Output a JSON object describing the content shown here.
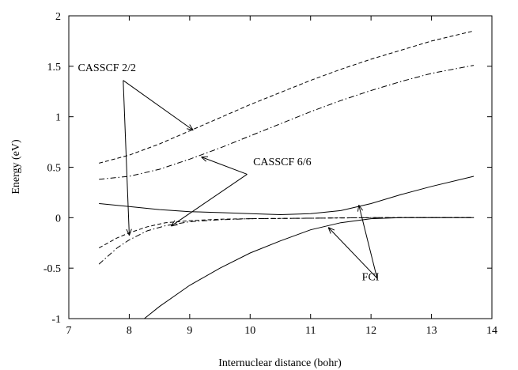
{
  "chart_data": {
    "type": "line",
    "xlabel": "Internuclear distance (bohr)",
    "ylabel": "Energy (eV)",
    "xlim": [
      7,
      14
    ],
    "ylim": [
      -1,
      2
    ],
    "x_ticks": [
      7,
      8,
      9,
      10,
      11,
      12,
      13,
      14
    ],
    "y_ticks": [
      -1,
      -0.5,
      0,
      0.5,
      1,
      1.5,
      2
    ],
    "x_tick_labels": [
      "7",
      "8",
      "9",
      "10",
      "11",
      "12",
      "13",
      "14"
    ],
    "y_tick_labels": [
      "-1",
      "-0.5",
      "0",
      "0.5",
      "1",
      "1.5",
      "2"
    ],
    "grid": false,
    "series": [
      {
        "method": "CASSCF 2/2",
        "style": "dashed",
        "color": "#000000",
        "x": [
          7.5,
          8,
          8.5,
          9,
          9.5,
          10,
          10.5,
          11,
          11.5,
          12,
          12.5,
          13,
          13.7
        ],
        "y": [
          0.54,
          0.62,
          0.73,
          0.86,
          0.99,
          1.12,
          1.24,
          1.36,
          1.47,
          1.57,
          1.66,
          1.75,
          1.85
        ]
      },
      {
        "method": "CASSCF 6/6",
        "style": "dashdot",
        "color": "#000000",
        "x": [
          7.5,
          8,
          8.5,
          9,
          9.5,
          10,
          10.5,
          11,
          11.5,
          12,
          12.5,
          13,
          13.7
        ],
        "y": [
          0.38,
          0.41,
          0.48,
          0.58,
          0.69,
          0.81,
          0.93,
          1.05,
          1.16,
          1.26,
          1.35,
          1.43,
          1.51
        ]
      },
      {
        "method": "FCI",
        "style": "solid",
        "color": "#000000",
        "x": [
          7.5,
          8,
          8.5,
          9,
          9.5,
          10,
          10.5,
          11,
          11.5,
          12,
          12.5,
          13,
          13.7
        ],
        "y": [
          0.14,
          0.11,
          0.08,
          0.06,
          0.05,
          0.04,
          0.03,
          0.04,
          0.07,
          0.14,
          0.23,
          0.31,
          0.41
        ]
      },
      {
        "method": "CASSCF 2/2",
        "style": "dashed",
        "color": "#000000",
        "x": [
          7.5,
          7.8,
          8,
          8.3,
          8.6,
          9,
          9.5,
          10,
          11,
          12,
          13,
          13.7
        ],
        "y": [
          -0.3,
          -0.2,
          -0.15,
          -0.09,
          -0.05,
          -0.03,
          -0.015,
          -0.01,
          -0.005,
          0,
          0,
          0
        ]
      },
      {
        "method": "CASSCF 6/6",
        "style": "dashdot",
        "color": "#000000",
        "x": [
          7.5,
          7.8,
          8,
          8.3,
          8.6,
          9,
          9.5,
          10,
          11,
          12,
          13,
          13.7
        ],
        "y": [
          -0.46,
          -0.3,
          -0.22,
          -0.13,
          -0.08,
          -0.04,
          -0.02,
          -0.01,
          -0.005,
          0,
          0,
          0
        ]
      },
      {
        "method": "FCI",
        "style": "solid",
        "color": "#000000",
        "x": [
          8.25,
          8.5,
          9,
          9.5,
          10,
          10.5,
          11,
          11.5,
          12,
          12.5,
          13,
          13.7
        ],
        "y": [
          -1,
          -0.88,
          -0.67,
          -0.5,
          -0.35,
          -0.23,
          -0.12,
          -0.05,
          -0.01,
          0,
          0,
          0
        ]
      }
    ],
    "annotations": [
      {
        "text": "CASSCF 2/2",
        "label_x": 7.15,
        "label_y": 1.45,
        "from": [
          7.9,
          1.36
        ],
        "arrows_to": [
          [
            9.05,
            0.87
          ],
          [
            8.0,
            -0.17
          ]
        ]
      },
      {
        "text": "CASSCF 6/6",
        "label_x": 10.05,
        "label_y": 0.52,
        "from": [
          9.95,
          0.43
        ],
        "arrows_to": [
          [
            9.2,
            0.6
          ],
          [
            8.7,
            -0.08
          ]
        ]
      },
      {
        "text": "FCI",
        "label_x": 11.85,
        "label_y": -0.62,
        "from": [
          12.1,
          -0.6
        ],
        "arrows_to": [
          [
            11.8,
            0.12
          ],
          [
            11.3,
            -0.1
          ]
        ]
      }
    ]
  }
}
